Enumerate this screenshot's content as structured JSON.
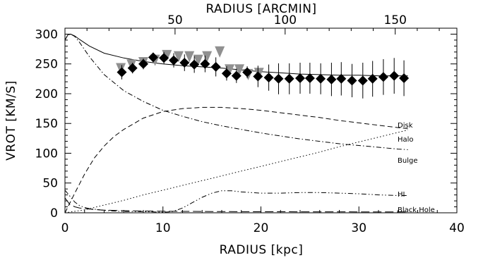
{
  "chart_data": {
    "type": "line",
    "title": "",
    "xlabel": "RADIUS [kpc]",
    "ylabel": "VROT [KM/S]",
    "x2label": "RADIUS [ARCMIN]",
    "xlim": [
      0,
      40
    ],
    "ylim": [
      0,
      310
    ],
    "x_ticks": [
      0,
      10,
      20,
      30,
      40
    ],
    "x2_ticks": [
      50,
      100,
      150
    ],
    "y_ticks": [
      0,
      50,
      100,
      150,
      200,
      250,
      300
    ],
    "grid": false,
    "legend": "none",
    "series": [
      {
        "name": "",
        "style": "solid",
        "x": [
          0,
          0.3,
          0.6,
          1.0,
          1.5,
          2.5,
          4,
          6,
          8,
          10,
          12,
          14,
          16,
          18,
          20,
          22,
          24,
          26,
          28,
          30,
          32,
          34,
          35
        ],
        "y": [
          290,
          299,
          300,
          297,
          291,
          280,
          268,
          260,
          254,
          250,
          247,
          245,
          243,
          240,
          237,
          235,
          233,
          232,
          231,
          231,
          230,
          230,
          230
        ]
      },
      {
        "name": "Disk",
        "style": "dashed",
        "x": [
          0,
          1,
          2,
          3,
          4,
          5,
          6,
          8,
          10,
          12,
          14,
          16,
          18,
          20,
          22,
          24,
          26,
          28,
          30,
          32,
          34,
          35
        ],
        "y": [
          0,
          33,
          65,
          92,
          112,
          128,
          140,
          159,
          170,
          175,
          177,
          177,
          175,
          172,
          168,
          164,
          160,
          155,
          151,
          147,
          143,
          141
        ]
      },
      {
        "name": "Halo",
        "style": "dotted",
        "x": [
          0,
          2,
          4,
          6,
          8,
          10,
          12,
          14,
          16,
          18,
          20,
          22,
          24,
          26,
          28,
          30,
          32,
          34,
          35
        ],
        "y": [
          0,
          5,
          13,
          21,
          30,
          38,
          46,
          54,
          62,
          70,
          78,
          86,
          94,
          102,
          111,
          119,
          127,
          135,
          139
        ]
      },
      {
        "name": "Bulge",
        "style": "dashdot",
        "x": [
          0,
          0.3,
          0.6,
          1.0,
          1.5,
          2.5,
          4,
          6,
          8,
          10,
          12,
          14,
          16,
          18,
          20,
          22,
          24,
          26,
          28,
          30,
          32,
          34,
          35
        ],
        "y": [
          290,
          299,
          300,
          296,
          286,
          262,
          232,
          205,
          187,
          172,
          162,
          153,
          146,
          140,
          134,
          129,
          124,
          120,
          116,
          113,
          110,
          107,
          106
        ]
      },
      {
        "name": "HI",
        "style": "dashdotdot",
        "x": [
          0,
          0.5,
          1.0,
          1.5,
          2.0,
          2.5,
          3,
          4,
          5,
          6,
          8,
          10,
          11,
          12,
          13,
          14,
          15,
          16,
          17,
          18,
          20,
          22,
          24,
          26,
          28,
          30,
          32,
          34,
          35
        ],
        "y": [
          38,
          28,
          18,
          12,
          9,
          7,
          6,
          4,
          3,
          2,
          2,
          1,
          2,
          8,
          17,
          26,
          33,
          37,
          37,
          35,
          33,
          33,
          34,
          34,
          33,
          32,
          30,
          29,
          29
        ]
      },
      {
        "name": "Black Hole",
        "style": "longdash",
        "x": [
          0,
          0.5,
          1,
          1.5,
          2,
          3,
          4,
          6,
          8,
          10,
          15,
          20,
          25,
          30,
          35
        ],
        "y": [
          25,
          14,
          10,
          8,
          7,
          5.5,
          4.5,
          3.5,
          3,
          2.6,
          2.1,
          1.8,
          1.6,
          1.5,
          1.4
        ]
      }
    ],
    "observations_gray": [
      {
        "x": 5.7,
        "y": 242
      },
      {
        "x": 6.8,
        "y": 248
      },
      {
        "x": 8.0,
        "y": 252
      },
      {
        "x": 9.2,
        "y": 256
      },
      {
        "x": 10.4,
        "y": 264
      },
      {
        "x": 11.6,
        "y": 262
      },
      {
        "x": 12.7,
        "y": 262
      },
      {
        "x": 13.6,
        "y": 256
      },
      {
        "x": 14.5,
        "y": 262
      },
      {
        "x": 15.8,
        "y": 270
      },
      {
        "x": 16.8,
        "y": 240
      },
      {
        "x": 17.8,
        "y": 240
      },
      {
        "x": 18.7,
        "y": 232
      },
      {
        "x": 19.8,
        "y": 234
      }
    ],
    "observations_black": [
      {
        "x": 5.8,
        "y": 236,
        "err": 12
      },
      {
        "x": 6.9,
        "y": 243,
        "err": 9
      },
      {
        "x": 8.0,
        "y": 250,
        "err": 9
      },
      {
        "x": 9.0,
        "y": 261,
        "err": 8
      },
      {
        "x": 10.1,
        "y": 260,
        "err": 10
      },
      {
        "x": 11.1,
        "y": 256,
        "err": 12
      },
      {
        "x": 12.2,
        "y": 252,
        "err": 14
      },
      {
        "x": 13.2,
        "y": 249,
        "err": 14
      },
      {
        "x": 14.3,
        "y": 250,
        "err": 14
      },
      {
        "x": 15.4,
        "y": 245,
        "err": 16
      },
      {
        "x": 16.5,
        "y": 234,
        "err": 12
      },
      {
        "x": 17.5,
        "y": 230,
        "err": 12
      },
      {
        "x": 18.6,
        "y": 236,
        "err": 10
      },
      {
        "x": 19.7,
        "y": 229,
        "err": 18
      },
      {
        "x": 20.8,
        "y": 227,
        "err": 22
      },
      {
        "x": 21.8,
        "y": 225,
        "err": 26
      },
      {
        "x": 22.9,
        "y": 225,
        "err": 26
      },
      {
        "x": 24.0,
        "y": 226,
        "err": 26
      },
      {
        "x": 25.0,
        "y": 226,
        "err": 26
      },
      {
        "x": 26.1,
        "y": 225,
        "err": 26
      },
      {
        "x": 27.2,
        "y": 224,
        "err": 28
      },
      {
        "x": 28.2,
        "y": 225,
        "err": 28
      },
      {
        "x": 29.3,
        "y": 222,
        "err": 28
      },
      {
        "x": 30.4,
        "y": 222,
        "err": 30
      },
      {
        "x": 31.4,
        "y": 225,
        "err": 30
      },
      {
        "x": 32.5,
        "y": 228,
        "err": 30
      },
      {
        "x": 33.6,
        "y": 230,
        "err": 30
      },
      {
        "x": 34.6,
        "y": 226,
        "err": 30
      }
    ]
  }
}
